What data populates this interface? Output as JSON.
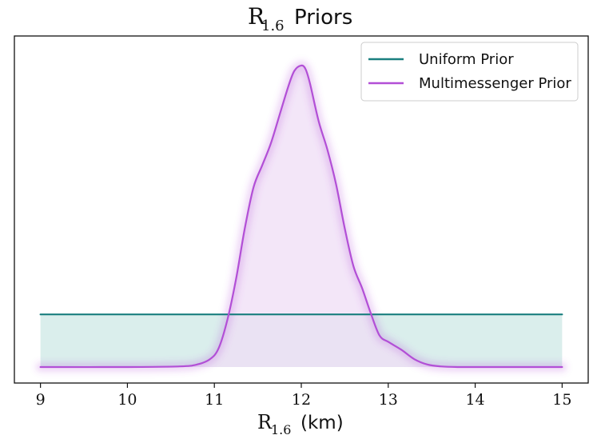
{
  "chart_data": {
    "type": "line",
    "title": {
      "symbol": "R",
      "subscript": "1.6",
      "text": "Priors"
    },
    "xlabel": {
      "symbol": "R",
      "subscript": "1.6",
      "text": "(km)"
    },
    "ylabel": "",
    "xlim": [
      8.7,
      15.3
    ],
    "ylim": [
      0,
      1.0
    ],
    "x_ticks": [
      9,
      10,
      11,
      12,
      13,
      14,
      15
    ],
    "x_tick_labels": [
      "9",
      "10",
      "11",
      "12",
      "13",
      "14",
      "15"
    ],
    "y_ticks_visible": false,
    "grid": false,
    "legend_position": "upper right",
    "series": [
      {
        "name": "Uniform Prior",
        "color": "#1a7f7f",
        "fill": "#d6ecea",
        "x": [
          9,
          15
        ],
        "y": [
          0.167,
          0.167
        ]
      },
      {
        "name": "Multimessenger Prior",
        "color": "#b24fd6",
        "fill": "#efdef5",
        "x": [
          9.0,
          10.0,
          10.6,
          10.8,
          10.95,
          11.05,
          11.15,
          11.25,
          11.35,
          11.45,
          11.55,
          11.65,
          11.75,
          11.85,
          11.92,
          12.0,
          12.05,
          12.1,
          12.2,
          12.3,
          12.4,
          12.5,
          12.6,
          12.7,
          12.8,
          12.9,
          13.0,
          13.15,
          13.3,
          13.45,
          13.6,
          13.8,
          14.2,
          15.0
        ],
        "y": [
          0.0,
          0.0,
          0.002,
          0.008,
          0.025,
          0.06,
          0.15,
          0.28,
          0.44,
          0.57,
          0.64,
          0.71,
          0.8,
          0.89,
          0.94,
          0.957,
          0.945,
          0.9,
          0.78,
          0.69,
          0.58,
          0.44,
          0.32,
          0.25,
          0.17,
          0.1,
          0.08,
          0.055,
          0.025,
          0.008,
          0.002,
          0.0,
          0.0,
          0.0
        ]
      }
    ]
  }
}
